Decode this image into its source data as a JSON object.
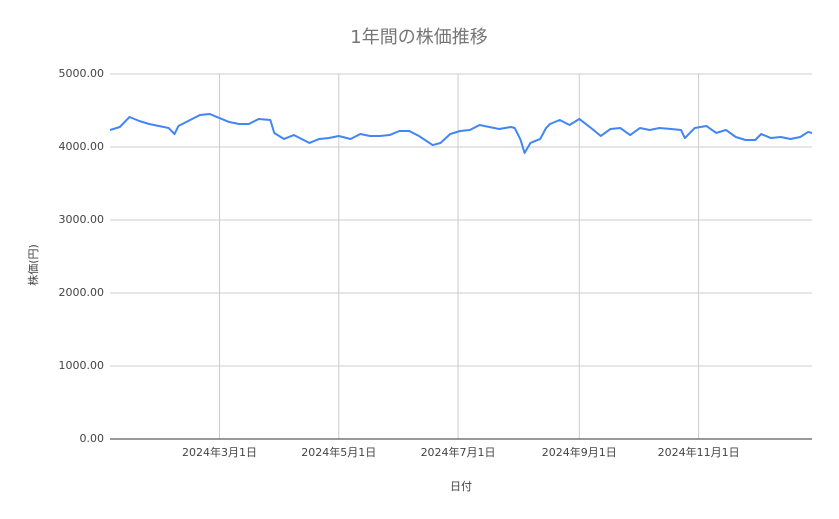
{
  "chart_data": {
    "type": "line",
    "title": "1年間の株価推移",
    "x_label": "日付",
    "y_label": "株価(円)",
    "x": [
      "2024-01-05",
      "2024-01-10",
      "2024-01-15",
      "2024-01-20",
      "2024-01-25",
      "2024-01-30",
      "2024-02-04",
      "2024-02-07",
      "2024-02-09",
      "2024-02-15",
      "2024-02-20",
      "2024-02-25",
      "2024-03-01",
      "2024-03-06",
      "2024-03-11",
      "2024-03-16",
      "2024-03-21",
      "2024-03-27",
      "2024-03-29",
      "2024-04-03",
      "2024-04-08",
      "2024-04-16",
      "2024-04-21",
      "2024-04-26",
      "2024-05-01",
      "2024-05-07",
      "2024-05-12",
      "2024-05-17",
      "2024-05-22",
      "2024-05-27",
      "2024-06-01",
      "2024-06-06",
      "2024-06-11",
      "2024-06-18",
      "2024-06-22",
      "2024-06-27",
      "2024-07-02",
      "2024-07-07",
      "2024-07-12",
      "2024-07-17",
      "2024-07-22",
      "2024-07-28",
      "2024-07-30",
      "2024-08-02",
      "2024-08-04",
      "2024-08-07",
      "2024-08-12",
      "2024-08-15",
      "2024-08-17",
      "2024-08-22",
      "2024-08-27",
      "2024-09-01",
      "2024-09-07",
      "2024-09-12",
      "2024-09-17",
      "2024-09-22",
      "2024-09-27",
      "2024-10-02",
      "2024-10-07",
      "2024-10-12",
      "2024-10-18",
      "2024-10-23",
      "2024-10-25",
      "2024-10-30",
      "2024-11-05",
      "2024-11-10",
      "2024-11-15",
      "2024-11-20",
      "2024-11-25",
      "2024-11-30",
      "2024-12-03",
      "2024-12-08",
      "2024-12-13",
      "2024-12-18",
      "2024-12-23",
      "2024-12-27",
      "2024-12-29"
    ],
    "values": [
      4233,
      4274,
      4411,
      4356,
      4315,
      4288,
      4260,
      4178,
      4288,
      4370,
      4438,
      4452,
      4397,
      4342,
      4315,
      4315,
      4384,
      4370,
      4192,
      4110,
      4164,
      4055,
      4110,
      4123,
      4151,
      4110,
      4178,
      4151,
      4151,
      4164,
      4219,
      4219,
      4151,
      4027,
      4055,
      4178,
      4219,
      4233,
      4301,
      4274,
      4247,
      4274,
      4260,
      4096,
      3918,
      4055,
      4110,
      4260,
      4315,
      4370,
      4301,
      4384,
      4260,
      4151,
      4247,
      4260,
      4164,
      4260,
      4233,
      4260,
      4247,
      4233,
      4123,
      4260,
      4288,
      4192,
      4233,
      4137,
      4096,
      4096,
      4178,
      4123,
      4137,
      4110,
      4137,
      4206,
      4192
    ],
    "color": "#4285f4",
    "xlim": [
      "2024-01-05",
      "2024-12-29"
    ],
    "xticks": [
      {
        "value": "2024-03-01",
        "label": "2024年3月1日"
      },
      {
        "value": "2024-05-01",
        "label": "2024年5月1日"
      },
      {
        "value": "2024-07-01",
        "label": "2024年7月1日"
      },
      {
        "value": "2024-09-01",
        "label": "2024年9月1日"
      },
      {
        "value": "2024-11-01",
        "label": "2024年11月1日"
      }
    ],
    "ylim": [
      0,
      5000
    ],
    "yticks": [
      {
        "value": 0,
        "label": "0.00"
      },
      {
        "value": 1000,
        "label": "1000.00"
      },
      {
        "value": 2000,
        "label": "2000.00"
      },
      {
        "value": 3000,
        "label": "3000.00"
      },
      {
        "value": 4000,
        "label": "4000.00"
      },
      {
        "value": 5000,
        "label": "5000.00"
      }
    ],
    "grid": true
  }
}
